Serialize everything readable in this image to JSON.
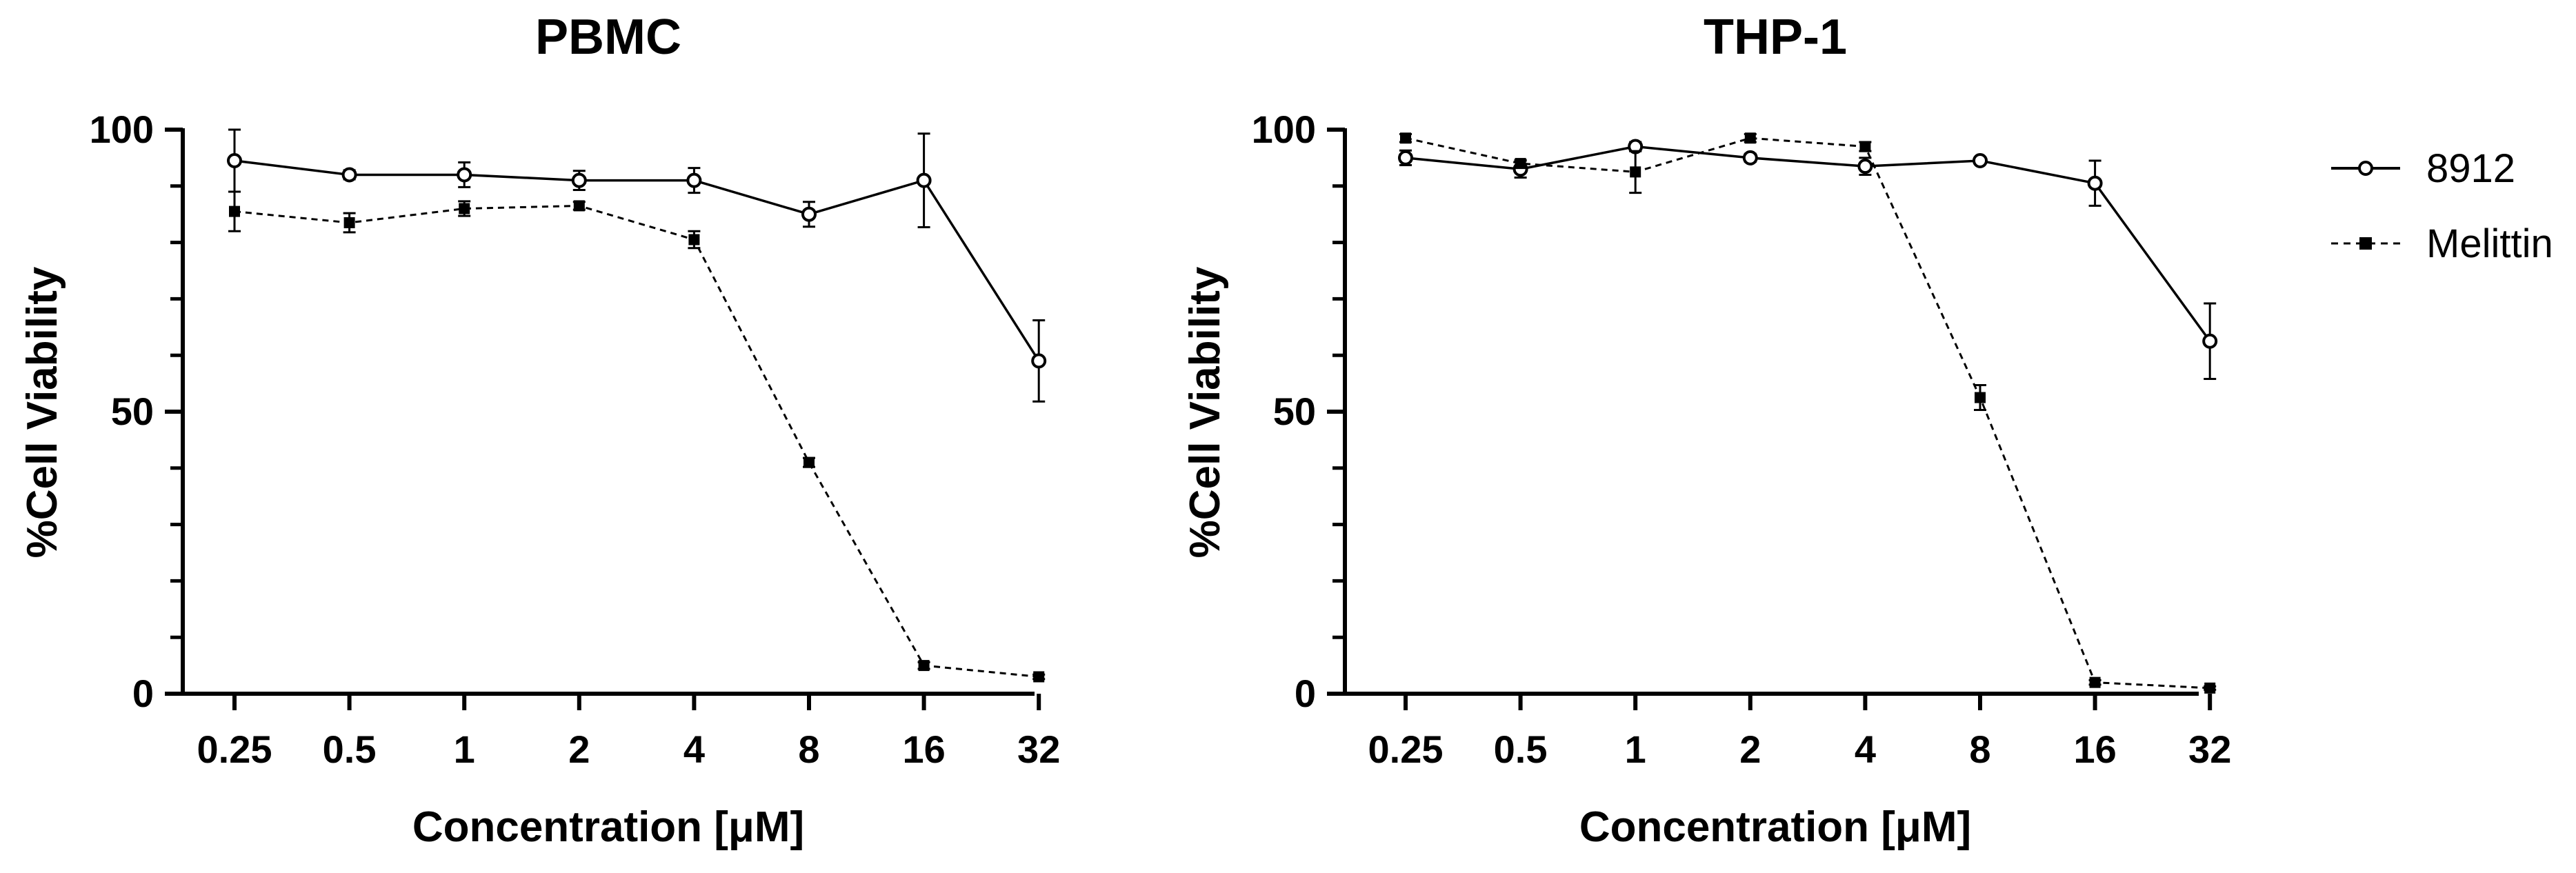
{
  "chart_data": [
    {
      "type": "line",
      "title": "PBMC",
      "xlabel": "Concentration [μM]",
      "ylabel": "%Cell Viability",
      "categories": [
        "0.25",
        "0.5",
        "1",
        "2",
        "4",
        "8",
        "16",
        "32"
      ],
      "ylim": [
        0,
        100
      ],
      "yticks": [
        "0",
        "50",
        "100"
      ],
      "series": [
        {
          "name": "8912",
          "values": [
            94.5,
            92,
            92,
            91,
            91,
            85,
            91,
            59
          ],
          "errors": [
            5.5,
            0.8,
            2.2,
            1.7,
            2.2,
            2.2,
            8.3,
            7.2
          ]
        },
        {
          "name": "Melittin",
          "values": [
            85.5,
            83.5,
            86,
            86.5,
            80.5,
            41,
            5,
            3
          ],
          "errors": [
            3.5,
            1.7,
            1.3,
            0.7,
            1.5,
            0.8,
            0.6,
            0.4
          ]
        }
      ]
    },
    {
      "type": "line",
      "title": "THP-1",
      "xlabel": "Concentration [μM]",
      "ylabel": "%Cell Viability",
      "categories": [
        "0.25",
        "0.5",
        "1",
        "2",
        "4",
        "8",
        "16",
        "32"
      ],
      "ylim": [
        0,
        100
      ],
      "yticks": [
        "0",
        "50",
        "100"
      ],
      "series": [
        {
          "name": "8912",
          "values": [
            95,
            93,
            97,
            95,
            93.5,
            94.5,
            90.5,
            62.5
          ],
          "errors": [
            1.3,
            1.5,
            0.8,
            0.7,
            1.5,
            0.6,
            4,
            6.7
          ]
        },
        {
          "name": "Melittin",
          "values": [
            98.5,
            94,
            92.5,
            98.5,
            97,
            52.5,
            2,
            1
          ],
          "errors": [
            0.7,
            0.6,
            3.7,
            0.7,
            0.8,
            2.2,
            0.4,
            0.3
          ]
        }
      ]
    }
  ],
  "legend": [
    {
      "name": "8912",
      "marker": "open-circle",
      "line": "solid"
    },
    {
      "name": "Melittin",
      "marker": "filled-square",
      "line": "dashed"
    }
  ],
  "colors": {
    "axis": "#000000",
    "series": "#000000",
    "background": "#ffffff"
  }
}
